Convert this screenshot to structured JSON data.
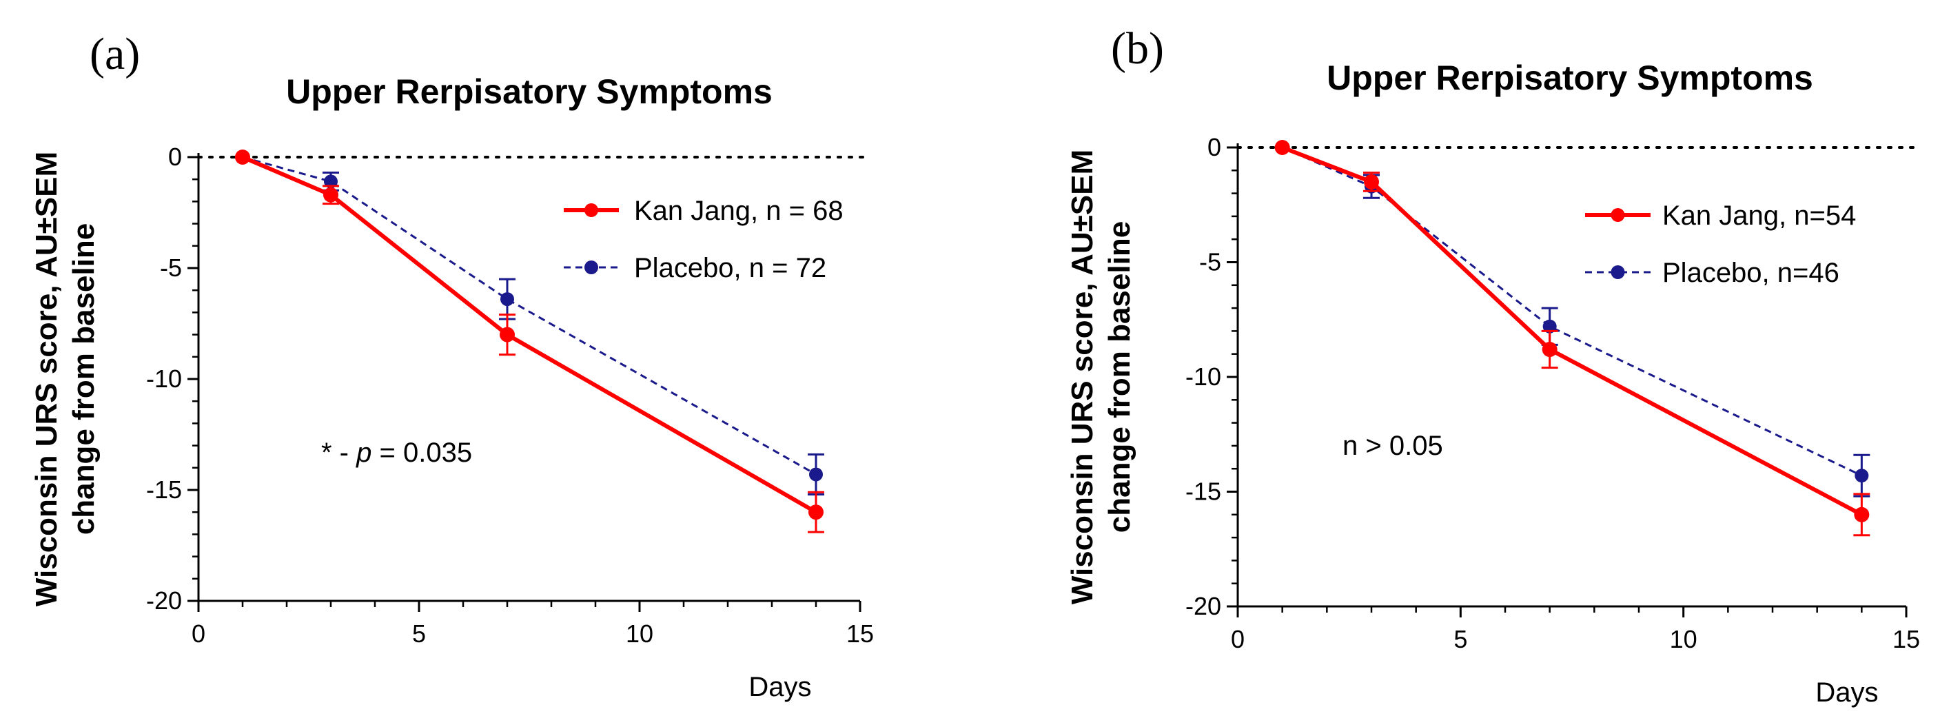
{
  "chart_data": [
    {
      "type": "line",
      "panel_label": "(a)",
      "title": "Upper Rerpisatory Symptoms",
      "ylabel_line1": "Wisconsin URS score, AU±SEM",
      "ylabel_line2": "change from baseline",
      "xlabel": "Days",
      "xlim": [
        0,
        15
      ],
      "ylim": [
        -20,
        0
      ],
      "x_ticks": [
        0,
        5,
        10,
        15
      ],
      "y_ticks": [
        0,
        -5,
        -10,
        -15,
        -20
      ],
      "x_tick_labels": [
        "0",
        "5",
        "10",
        "15"
      ],
      "y_tick_labels": [
        "0",
        "-5",
        "-10",
        "-15",
        "-20"
      ],
      "reference_line_y": 0,
      "annotation": {
        "prefix": "* - ",
        "italic": "p",
        "suffix": " = 0.035"
      },
      "legend_position": "upper-right",
      "series": [
        {
          "name": "Kan Jang, n = 68",
          "color": "#ff0000",
          "style": "solid",
          "x": [
            1,
            3,
            7,
            14
          ],
          "y": [
            0,
            -1.7,
            -8.0,
            -16.0
          ],
          "err": [
            0,
            0.4,
            0.9,
            0.9
          ]
        },
        {
          "name": "Placebo, n = 72",
          "color": "#1a1a8c",
          "style": "dashed",
          "x": [
            1,
            3,
            7,
            14
          ],
          "y": [
            0,
            -1.1,
            -6.4,
            -14.3
          ],
          "err": [
            0,
            0.4,
            0.9,
            0.9
          ]
        }
      ]
    },
    {
      "type": "line",
      "panel_label": "(b)",
      "title": "Upper Rerpisatory Symptoms",
      "ylabel_line1": "Wisconsin URS score, AU±SEM",
      "ylabel_line2": "change from baseline",
      "xlabel": "Days",
      "xlim": [
        0,
        15
      ],
      "ylim": [
        -20,
        0
      ],
      "x_ticks": [
        0,
        5,
        10,
        15
      ],
      "y_ticks": [
        0,
        -5,
        -10,
        -15,
        -20
      ],
      "x_tick_labels": [
        "0",
        "5",
        "10",
        "15"
      ],
      "y_tick_labels": [
        "0",
        "-5",
        "-10",
        "-15",
        "-20"
      ],
      "reference_line_y": 0,
      "annotation": {
        "prefix": "n > 0.05",
        "italic": "",
        "suffix": ""
      },
      "legend_position": "upper-right",
      "series": [
        {
          "name": "Kan Jang, n=54",
          "color": "#ff0000",
          "style": "solid",
          "x": [
            1,
            3,
            7,
            14
          ],
          "y": [
            0,
            -1.5,
            -8.8,
            -16.0
          ],
          "err": [
            0,
            0.4,
            0.8,
            0.9
          ]
        },
        {
          "name": "Placebo, n=46",
          "color": "#1a1a8c",
          "style": "dashed",
          "x": [
            1,
            3,
            7,
            14
          ],
          "y": [
            0,
            -1.7,
            -7.8,
            -14.3
          ],
          "err": [
            0,
            0.5,
            0.8,
            0.9
          ]
        }
      ]
    }
  ]
}
